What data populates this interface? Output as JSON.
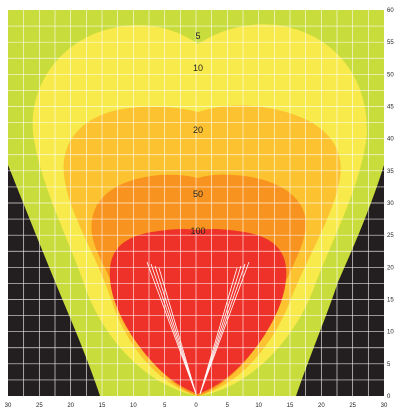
{
  "colors": {
    "background": "#231f20",
    "zone_5": "#c8dc3c",
    "zone_10": "#f7ea4a",
    "zone_20": "#fcc22f",
    "zone_50": "#f7931e",
    "zone_100": "#ee3129",
    "beam_lines": "#ffffff",
    "grid": "#ffffff"
  },
  "zones": [
    {
      "label": "5"
    },
    {
      "label": "10"
    },
    {
      "label": "20"
    },
    {
      "label": "50"
    },
    {
      "label": "100"
    }
  ],
  "x_ticks": [
    "30",
    "25",
    "20",
    "15",
    "10",
    "5",
    "0",
    "5",
    "10",
    "15",
    "20",
    "25",
    "30"
  ],
  "y_ticks": [
    "0",
    "5",
    "10",
    "15",
    "20",
    "25",
    "30",
    "35",
    "40",
    "45",
    "50",
    "55",
    "60"
  ]
}
